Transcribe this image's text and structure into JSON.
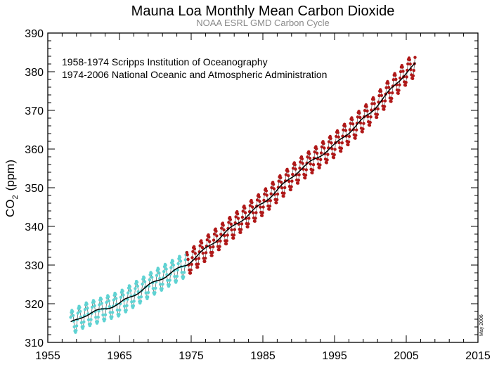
{
  "chart_data": {
    "type": "line",
    "title": "Mauna Loa Monthly Mean Carbon Dioxide",
    "subtitle": "NOAA ESRL GMD Carbon Cycle",
    "ylabel_main": "CO",
    "ylabel_sub": "2",
    "ylabel_unit": "(ppm)",
    "xlabel": "",
    "xlim": [
      1955,
      2015
    ],
    "ylim": [
      310,
      390
    ],
    "x_ticks": [
      1955,
      1965,
      1975,
      1985,
      1995,
      2005,
      2015
    ],
    "x_minor_step": 2,
    "y_ticks": [
      310,
      320,
      330,
      340,
      350,
      360,
      370,
      380,
      390
    ],
    "y_minor_step": 2,
    "grid": false,
    "annotations": [
      "1958-1974 Scripps Institution of Oceanography",
      "1974-2006 National Oceanic and Atmospheric Administration"
    ],
    "date_stamp": "May 2006",
    "series": [
      {
        "role": "Scripps monthly mean",
        "x_start": 1958.2,
        "x_end": 1974.4,
        "step": 0.0833,
        "trend_anchors": [
          [
            1958.2,
            315.0
          ],
          [
            1960,
            316.9
          ],
          [
            1965,
            320.0
          ],
          [
            1970,
            325.7
          ],
          [
            1974.4,
            330.2
          ]
        ],
        "seasonal_amplitude": 3.1,
        "color": "#5fd3d3"
      },
      {
        "role": "NOAA monthly mean",
        "x_start": 1974.4,
        "x_end": 2006.3,
        "step": 0.0833,
        "trend_anchors": [
          [
            1974.4,
            330.2
          ],
          [
            1980,
            338.7
          ],
          [
            1985,
            346.0
          ],
          [
            1990,
            354.4
          ],
          [
            1995,
            361.0
          ],
          [
            2000,
            369.4
          ],
          [
            2005,
            379.8
          ],
          [
            2006.3,
            382.0
          ]
        ],
        "seasonal_amplitude": 3.1,
        "color": "#b01818"
      },
      {
        "role": "deseasonalized trend",
        "x_start": 1958.2,
        "x_end": 2006.3,
        "color": "#000000"
      }
    ]
  }
}
